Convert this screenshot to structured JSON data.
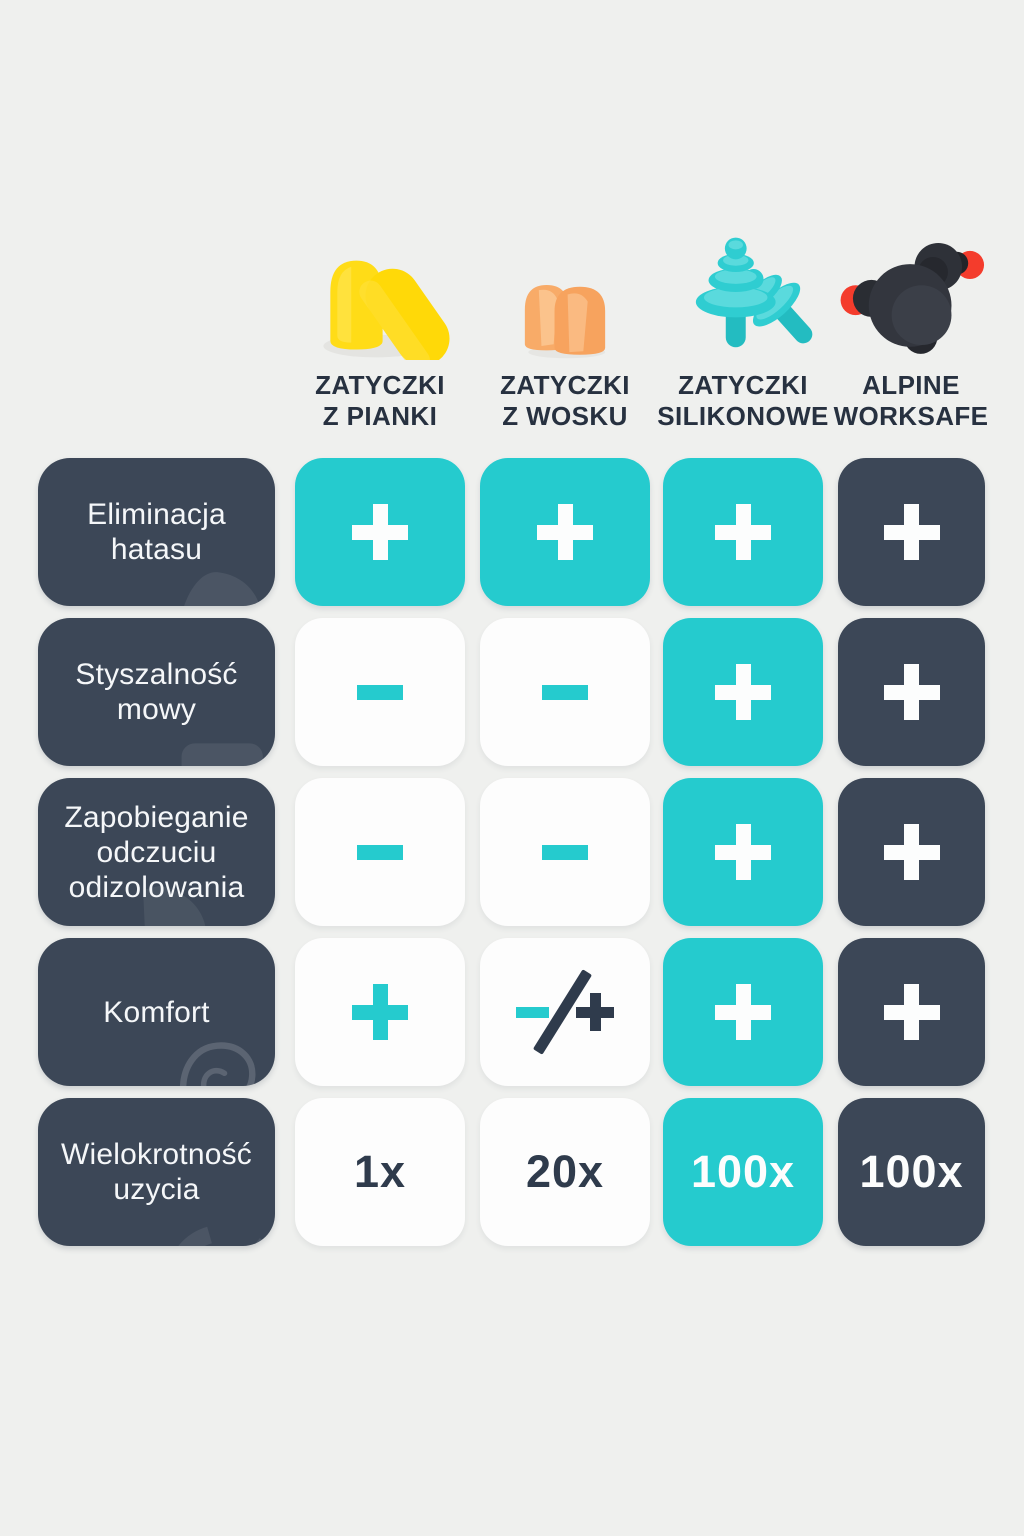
{
  "colors": {
    "background": "#eff0ee",
    "teal": "#25cbce",
    "dark_navy": "#3c4757",
    "white_cell": "#fdfdfd",
    "header_text": "#273140",
    "label_text": "#f5f7f9",
    "foam_yellow": "#ffdc17",
    "wax_orange": "#f7a35e",
    "silicone_teal": "#2fcdd1",
    "alpine_charcoal": "#33363e",
    "alpine_red": "#f43c2c"
  },
  "columns": [
    {
      "name": "ZATYCZKI Z PIANKI",
      "line1": "ZATYCZKI",
      "line2": "Z PIANKI",
      "icon": "foam-earplugs-icon"
    },
    {
      "name": "ZATYCZKI Z WOSKU",
      "line1": "ZATYCZKI",
      "line2": "Z WOSKU",
      "icon": "wax-earplugs-icon"
    },
    {
      "name": "ZATYCZKI SILIKONOWE",
      "line1": "ZATYCZKI",
      "line2": "SILIKONOWE",
      "icon": "silicone-earplugs-icon"
    },
    {
      "name": "ALPINE WORKSAFE",
      "line1": "ALPINE",
      "line2": "WORKSAFE",
      "icon": "alpine-worksafe-icon"
    }
  ],
  "rows": [
    {
      "label": "Eliminacja hatasu",
      "label_lines": [
        "Eliminacja",
        "hatasu"
      ],
      "icon": "noise-blob-icon",
      "cells": [
        {
          "value": "+",
          "bg": "teal",
          "fg": "white"
        },
        {
          "value": "+",
          "bg": "teal",
          "fg": "white"
        },
        {
          "value": "+",
          "bg": "teal",
          "fg": "white"
        },
        {
          "value": "+",
          "bg": "dark",
          "fg": "white"
        }
      ]
    },
    {
      "label": "Styszalność mowy",
      "label_lines": [
        "Styszalność",
        "mowy"
      ],
      "icon": "speech-bubble-icon",
      "cells": [
        {
          "value": "-",
          "bg": "white",
          "fg": "teal"
        },
        {
          "value": "-",
          "bg": "white",
          "fg": "teal"
        },
        {
          "value": "+",
          "bg": "teal",
          "fg": "white"
        },
        {
          "value": "+",
          "bg": "dark",
          "fg": "white"
        }
      ]
    },
    {
      "label": "Zapobieganie odczuciu odizolowania",
      "label_lines": [
        "Zapobieganie",
        "odczuciu",
        "odizolowania"
      ],
      "icon": "leaf-blob-icon",
      "cells": [
        {
          "value": "-",
          "bg": "white",
          "fg": "teal"
        },
        {
          "value": "-",
          "bg": "white",
          "fg": "teal"
        },
        {
          "value": "+",
          "bg": "teal",
          "fg": "white"
        },
        {
          "value": "+",
          "bg": "dark",
          "fg": "white"
        }
      ]
    },
    {
      "label": "Komfort",
      "label_lines": [
        "Komfort"
      ],
      "icon": "ear-icon",
      "cells": [
        {
          "value": "+",
          "bg": "white",
          "fg": "teal"
        },
        {
          "value": "-/+",
          "bg": "white",
          "fg": "mixed"
        },
        {
          "value": "+",
          "bg": "teal",
          "fg": "white"
        },
        {
          "value": "+",
          "bg": "dark",
          "fg": "white"
        }
      ]
    },
    {
      "label": "Wielokrotność uzycia",
      "label_lines": [
        "Wielokrotność",
        "uzycia"
      ],
      "icon": "reuse-ring-icon",
      "cells": [
        {
          "value": "1x",
          "bg": "white",
          "fg": "dark"
        },
        {
          "value": "20x",
          "bg": "white",
          "fg": "dark"
        },
        {
          "value": "100x",
          "bg": "teal",
          "fg": "white"
        },
        {
          "value": "100x",
          "bg": "dark",
          "fg": "white"
        }
      ]
    }
  ],
  "chart_data": {
    "type": "table",
    "title": "",
    "columns": [
      "ZATYCZKI Z PIANKI",
      "ZATYCZKI Z WOSKU",
      "ZATYCZKI SILIKONOWE",
      "ALPINE WORKSAFE"
    ],
    "rows": [
      "Eliminacja hatasu",
      "Styszalność mowy",
      "Zapobieganie odczuciu odizolowania",
      "Komfort",
      "Wielokrotność uzycia"
    ],
    "values": [
      [
        "+",
        "+",
        "+",
        "+"
      ],
      [
        "-",
        "-",
        "+",
        "+"
      ],
      [
        "-",
        "-",
        "+",
        "+"
      ],
      [
        "+",
        "-/+",
        "+",
        "+"
      ],
      [
        "1x",
        "20x",
        "100x",
        "100x"
      ]
    ]
  }
}
